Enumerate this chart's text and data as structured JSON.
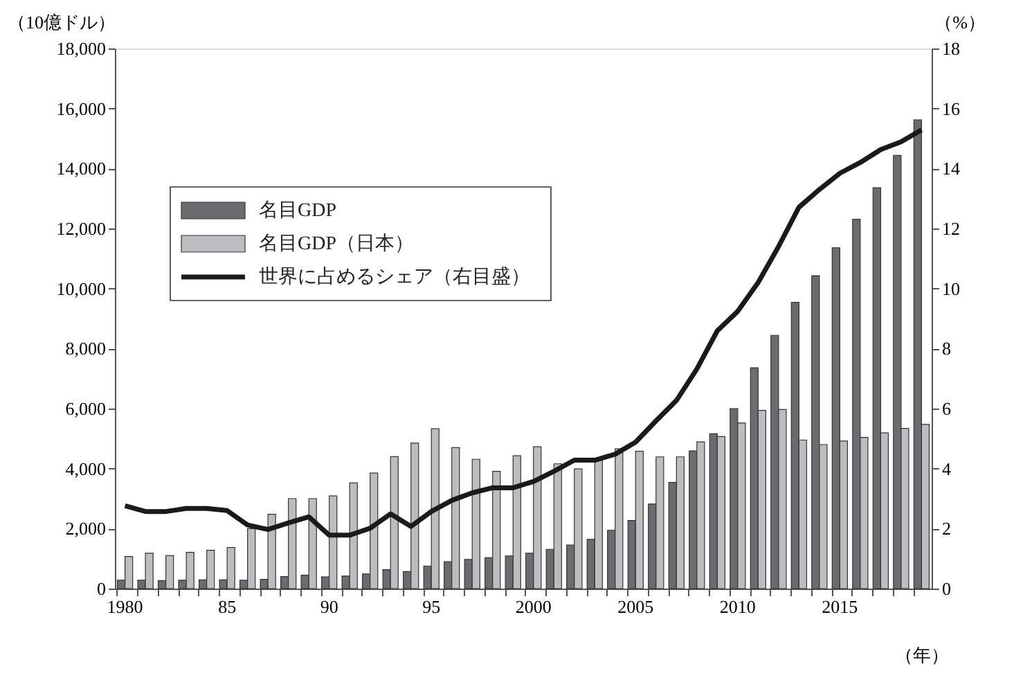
{
  "chart_data": {
    "type": "bar",
    "ylabel": "（10億ドル）",
    "y2label": "（%）",
    "xlabel": "（年）",
    "categories": [
      "1980",
      null,
      null,
      null,
      null,
      "85",
      null,
      null,
      null,
      null,
      "90",
      null,
      null,
      null,
      null,
      "95",
      null,
      null,
      null,
      null,
      "2000",
      null,
      null,
      null,
      null,
      "2005",
      null,
      null,
      null,
      null,
      "2010",
      null,
      null,
      null,
      null,
      "2015",
      null,
      null,
      null,
      null
    ],
    "series": [
      {
        "name": "名目GDP",
        "color": "#6b6b70",
        "values": [
          280,
          280,
          270,
          280,
          290,
          290,
          280,
          310,
          400,
          450,
          390,
          420,
          490,
          630,
          570,
          750,
          900,
          970,
          1030,
          1090,
          1180,
          1310,
          1450,
          1640,
          1940,
          2270,
          2820,
          3540,
          4590,
          5160,
          6000,
          7360,
          8440,
          9540,
          10430,
          11360,
          12310,
          13360,
          14440,
          15620
        ]
      },
      {
        "name": "名目GDP（日本）",
        "color": "#bdbdc0",
        "values": [
          1070,
          1180,
          1100,
          1210,
          1280,
          1370,
          2000,
          2480,
          3000,
          3000,
          3090,
          3520,
          3850,
          4400,
          4850,
          5330,
          4700,
          4310,
          3910,
          4430,
          4730,
          4160,
          3990,
          4280,
          4660,
          4580,
          4390,
          4390,
          4890,
          5070,
          5520,
          5940,
          5970,
          4950,
          4800,
          4920,
          5040,
          5190,
          5340,
          5470
        ]
      },
      {
        "name": "世界に占めるシェア（右目盛）",
        "type": "line",
        "axis": "y2",
        "color": "#1a1a1a",
        "values": [
          2.76,
          2.57,
          2.57,
          2.67,
          2.67,
          2.6,
          2.12,
          1.97,
          2.19,
          2.39,
          1.78,
          1.78,
          2.01,
          2.49,
          2.07,
          2.57,
          2.94,
          3.19,
          3.36,
          3.36,
          3.57,
          3.91,
          4.28,
          4.28,
          4.48,
          4.88,
          5.59,
          6.27,
          7.32,
          8.59,
          9.24,
          10.2,
          11.4,
          12.71,
          13.3,
          13.84,
          14.2,
          14.63,
          14.89,
          15.29
        ]
      }
    ],
    "ylim": [
      0,
      18000
    ],
    "yticks": [
      0,
      {
        "value": 2000,
        "label": "2,000"
      },
      {
        "value": 4000,
        "label": "4,000"
      },
      {
        "value": 6000,
        "label": "6,000"
      },
      {
        "value": 8000,
        "label": "8,000"
      },
      {
        "value": 10000,
        "label": "10,000"
      },
      {
        "value": 12000,
        "label": "12,000"
      },
      {
        "value": 14000,
        "label": "14,000"
      },
      {
        "value": 16000,
        "label": "16,000"
      },
      {
        "value": 18000,
        "label": "18,000"
      }
    ],
    "y2lim": [
      0,
      18
    ],
    "y2ticks": [
      0,
      2,
      4,
      6,
      8,
      10,
      12,
      14,
      16,
      18
    ],
    "legend": "top left",
    "grid": false,
    "line_style": "solid"
  }
}
